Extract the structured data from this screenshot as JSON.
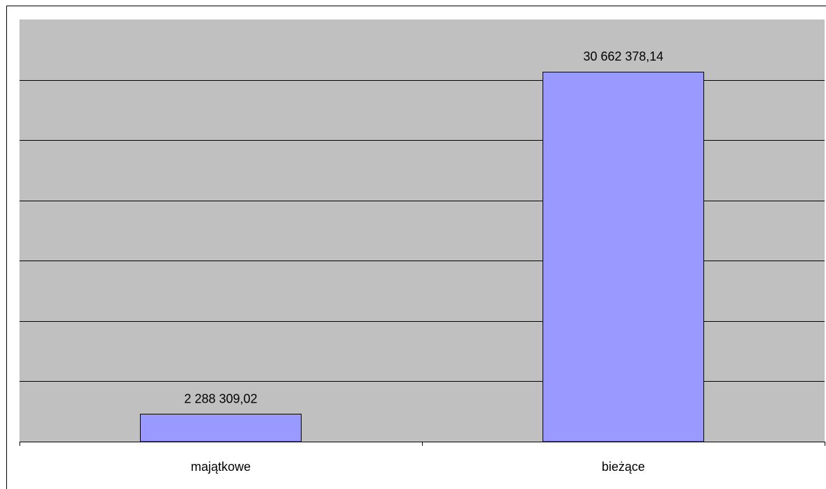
{
  "chart_data": {
    "type": "bar",
    "categories": [
      "majątkowe",
      "bieżące"
    ],
    "values": [
      2288309.02,
      30662378.14
    ],
    "data_labels": [
      "2 288 309,02",
      "30 662 378,14"
    ],
    "ylim": [
      0,
      35000000
    ],
    "grid": true,
    "legend": "none",
    "bar_color": "#9999ff",
    "plot_background": "#c0c0c0"
  }
}
